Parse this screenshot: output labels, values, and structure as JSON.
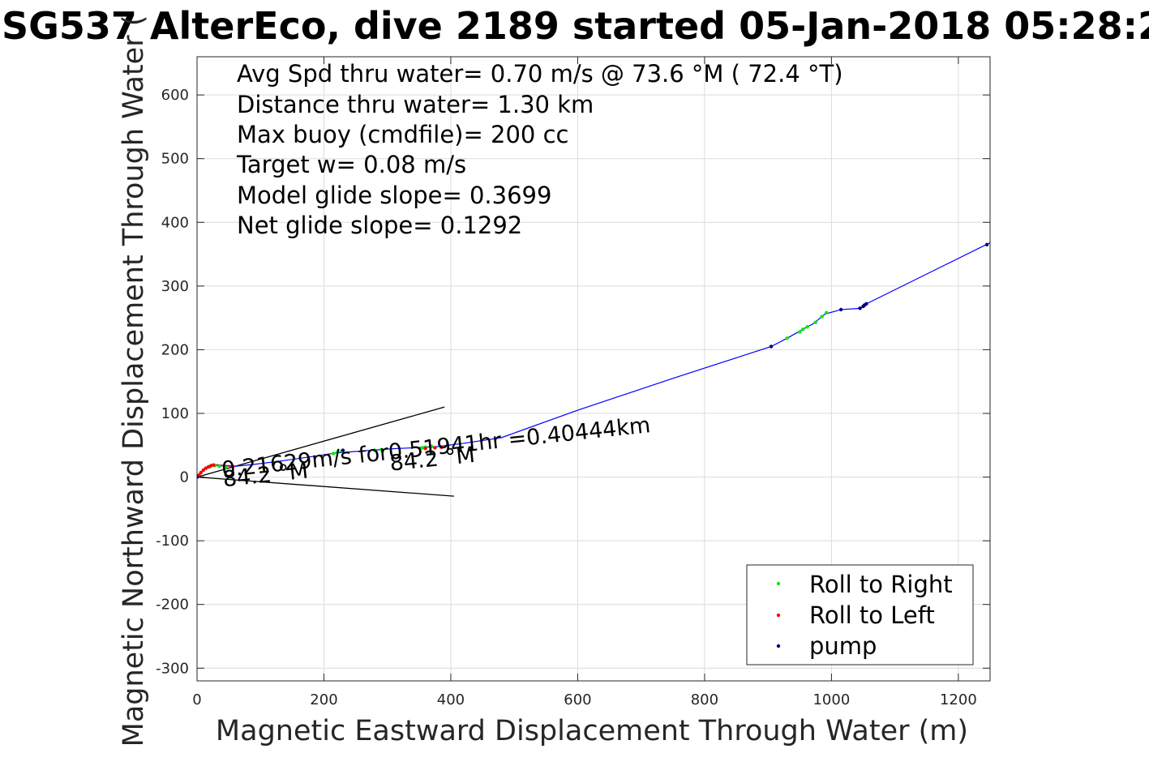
{
  "colors": {
    "track": "#0000ff",
    "roll_right": "#00ee00",
    "roll_left": "#ff0000",
    "pump": "#000080",
    "heading_lines": "#000000",
    "roll_segments": "#b0007a"
  },
  "chart_data": {
    "type": "scatter",
    "title": "SG537 AlterEco, dive 2189 started 05-Jan-2018 05:28:2",
    "xlabel": "Magnetic Eastward Displacement Through Water (m)",
    "ylabel": "Magnetic Northward Displacement Through Water (",
    "xlim": [
      0,
      1250
    ],
    "ylim": [
      -320,
      660
    ],
    "xticks": [
      0,
      200,
      400,
      600,
      800,
      1000,
      1200
    ],
    "yticks": [
      -300,
      -200,
      -100,
      0,
      100,
      200,
      300,
      400,
      500,
      600
    ],
    "grid": true,
    "legend_position": "bottom-right",
    "info_lines": [
      "Avg Spd thru water=  0.70 m/s @  73.6 °M ( 72.4 °T)",
      "Distance thru water=  1.30 km",
      "Max buoy (cmdfile)= 200 cc",
      "Target w= 0.08 m/s",
      "Model glide slope= 0.3699",
      "Net glide slope= 0.1292"
    ],
    "annotations": [
      {
        "text": "0.21629m/s for0.51941hr =0.40444km",
        "x": 40,
        "y": 0,
        "angle_deg": -6
      },
      {
        "text": "84.2 °M",
        "x": 42,
        "y": -15,
        "angle_deg": -6
      },
      {
        "text": "84.2 °M",
        "x": 305,
        "y": 10,
        "angle_deg": -6
      }
    ],
    "heading_lines": [
      {
        "x": [
          0,
          390
        ],
        "y": [
          0,
          110
        ]
      },
      {
        "x": [
          0,
          405
        ],
        "y": [
          0,
          -30
        ]
      }
    ],
    "series": [
      {
        "name": "track",
        "type": "line",
        "x": [
          0,
          5,
          10,
          18,
          25,
          32,
          40,
          60,
          90,
          130,
          180,
          220,
          260,
          300,
          340,
          380,
          420,
          480,
          600,
          750,
          905,
          930,
          948,
          955,
          962,
          970,
          980,
          990,
          1015,
          1045,
          1050,
          1055,
          1250
        ],
        "y": [
          0,
          5,
          12,
          17,
          18,
          19,
          18,
          17,
          20,
          25,
          32,
          38,
          41,
          44,
          46,
          48,
          53,
          62,
          105,
          155,
          205,
          218,
          228,
          232,
          236,
          240,
          248,
          256,
          263,
          265,
          268,
          272,
          368
        ]
      },
      {
        "name": "Roll to Right",
        "type": "scatter",
        "x": [
          20,
          28,
          35,
          45,
          215,
          222,
          228,
          280,
          290,
          355,
          360,
          370,
          930,
          950,
          955,
          962,
          975,
          985,
          992
        ],
        "y": [
          16,
          18,
          17,
          15,
          37,
          40,
          41,
          42,
          43,
          46,
          47,
          48,
          218,
          228,
          232,
          236,
          243,
          252,
          258
        ]
      },
      {
        "name": "Roll to Left",
        "type": "scatter",
        "x": [
          3,
          6,
          10,
          14,
          18,
          22,
          26,
          360,
          375,
          385
        ],
        "y": [
          3,
          7,
          11,
          14,
          16,
          18,
          19,
          45,
          46,
          47
        ]
      },
      {
        "name": "pump",
        "type": "scatter",
        "x": [
          0,
          230,
          905,
          1015,
          1045,
          1050,
          1052,
          1055,
          1245
        ],
        "y": [
          0,
          42,
          205,
          263,
          265,
          268,
          270,
          272,
          365
        ]
      }
    ],
    "legend": [
      "Roll to Right",
      "Roll to Left",
      "pump"
    ]
  }
}
